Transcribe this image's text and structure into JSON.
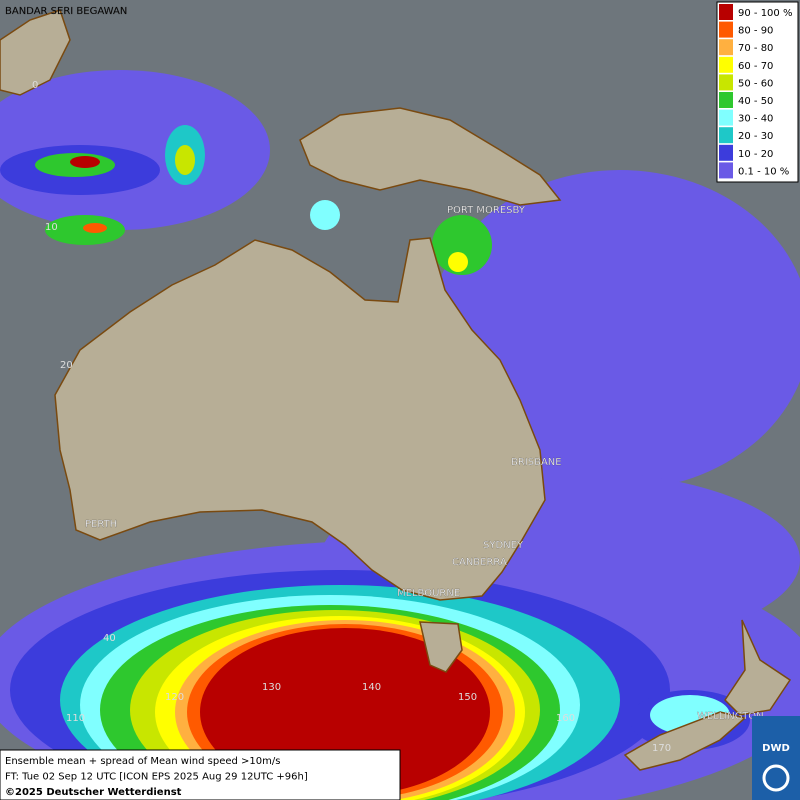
{
  "legend": {
    "entries": [
      {
        "label": "90 - 100 %",
        "color": "#b80000"
      },
      {
        "label": "80 - 90",
        "color": "#ff5a00"
      },
      {
        "label": "70 - 80",
        "color": "#ffb040"
      },
      {
        "label": "60 - 70",
        "color": "#ffff00"
      },
      {
        "label": "50 - 60",
        "color": "#c8e600"
      },
      {
        "label": "40 - 50",
        "color": "#2ec82e"
      },
      {
        "label": "30 - 40",
        "color": "#80ffff"
      },
      {
        "label": "20 - 30",
        "color": "#1ec8c8"
      },
      {
        "label": "10 - 20",
        "color": "#3c3cdc"
      },
      {
        "label": "0.1 - 10 %",
        "color": "#6a5ae6"
      }
    ]
  },
  "cities": [
    "BANDAR SERI BEGAWAN",
    "PORT MORESBY",
    "BRISBANE",
    "SYDNEY",
    "CANBERRA",
    "MELBOURNE",
    "PERTH",
    "WELLINGTON"
  ],
  "latitude_labels": [
    "0",
    "10",
    "20",
    "40"
  ],
  "longitude_labels": [
    "110",
    "120",
    "130",
    "140",
    "150",
    "160",
    "170"
  ],
  "footer": [
    "Ensemble mean + spread of Mean wind speed >10m/s",
    "FT: Tue 02 Sep 12 UTC [ICON EPS 2025 Aug 29 12UTC +96h]",
    "©2025 Deutscher Wetterdienst"
  ],
  "logo": "DWD"
}
